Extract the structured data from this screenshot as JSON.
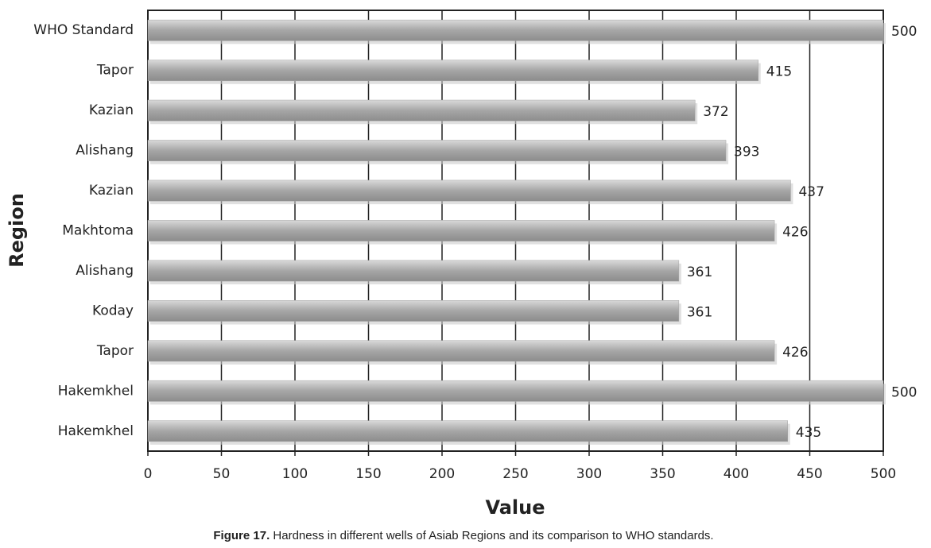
{
  "chart_data": {
    "type": "bar",
    "orientation": "horizontal",
    "caption_label": "Figure 17.",
    "caption_text": "Hardness in different wells of Asiab Regions and its comparison to WHO standards.",
    "xlabel": "Value",
    "ylabel": "Region",
    "categories": [
      "WHO Standard",
      "Tapor",
      "Kazian",
      "Alishang",
      "Kazian",
      "Makhtoma",
      "Alishang",
      "Koday",
      "Tapor",
      "Hakemkhel",
      "Hakemkhel"
    ],
    "values": [
      500,
      415,
      372,
      393,
      437,
      426,
      361,
      361,
      426,
      500,
      435
    ],
    "color": "#a6a6a6",
    "xlim": [
      0,
      500
    ],
    "xticks": [
      0,
      50,
      100,
      150,
      200,
      250,
      300,
      350,
      400,
      450,
      500
    ],
    "grid": true
  }
}
